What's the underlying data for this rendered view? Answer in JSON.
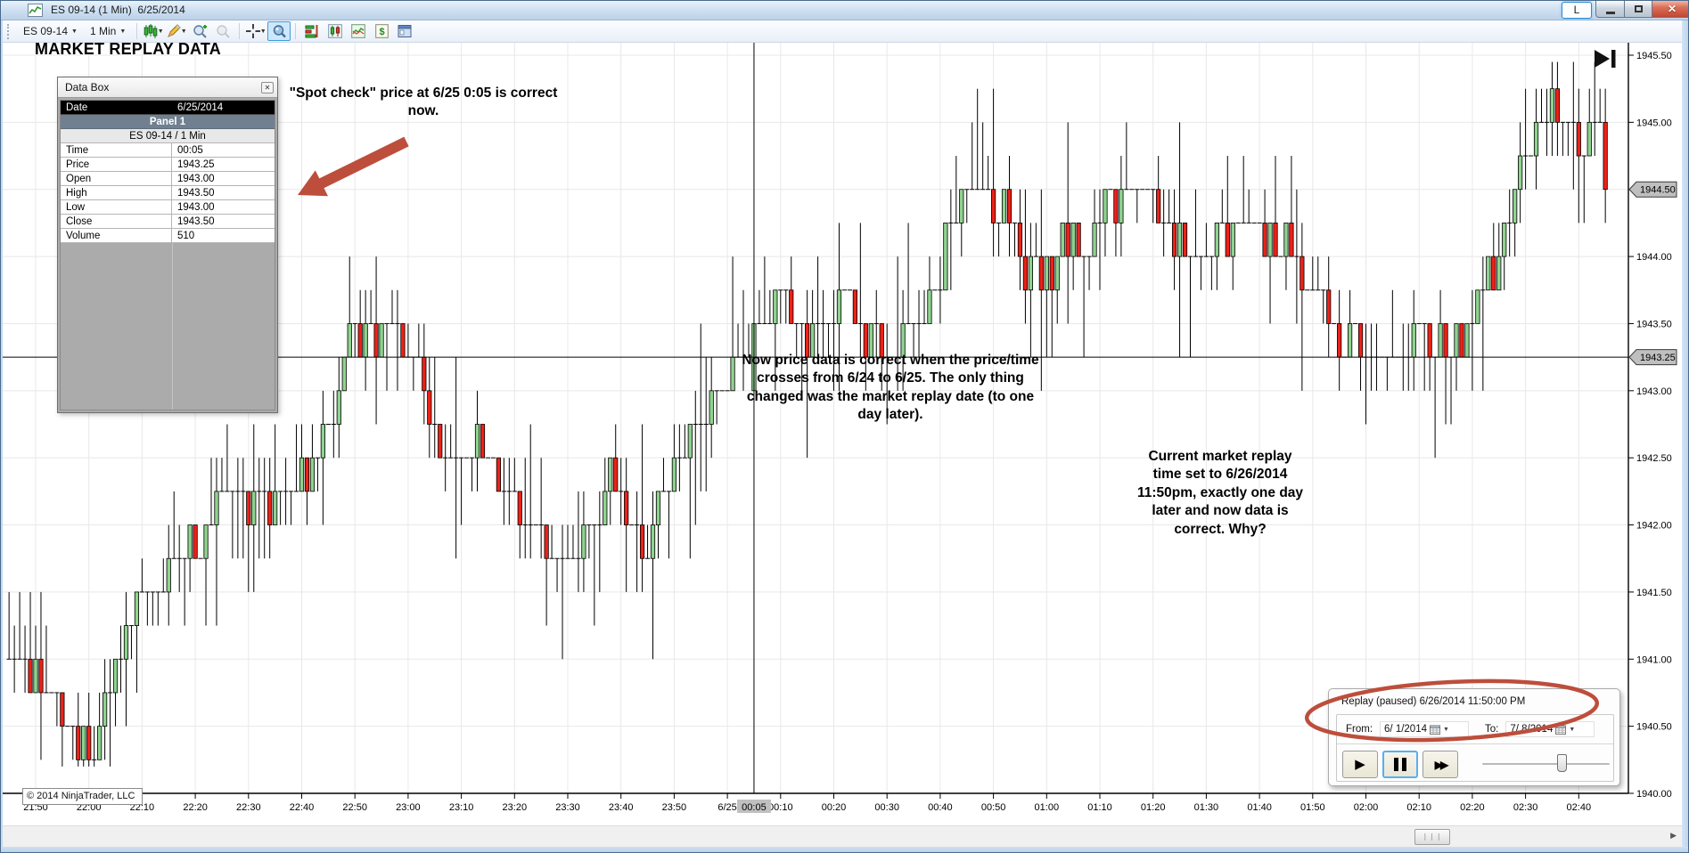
{
  "window": {
    "title": "ES 09-14 (1 Min)  6/25/2014",
    "link_label": "L",
    "copyright": "© 2014 NinjaTrader, LLC"
  },
  "toolbar": {
    "instrument": "ES 09-14",
    "interval": "1 Min"
  },
  "annotations": {
    "heading": "MARKET REPLAY DATA",
    "spot_check": "\"Spot check\" price at 6/25 0:05 is correct\nnow.",
    "mid_note": "Now price data is correct when the price/time\ncrosses from 6/24 to 6/25.  The only thing\nchanged was the market replay date (to one\nday later).",
    "right_note": "Current market replay\ntime set to 6/26/2014\n11:50pm, exactly one day\nlater and now data is\ncorrect.  Why?",
    "accent_color": "#bd4e3c"
  },
  "data_box": {
    "title": "Data Box",
    "close_glyph": "✕",
    "rows": [
      {
        "label": "Date",
        "value": "6/25/2014",
        "style": "hdr-black"
      },
      {
        "label": "Panel 1",
        "value": "",
        "style": "hdr-slate"
      },
      {
        "label": "ES 09-14 / 1 Min",
        "value": "",
        "style": "hdr-light"
      },
      {
        "label": "Time",
        "value": "00:05",
        "style": ""
      },
      {
        "label": "Price",
        "value": "1943.25",
        "style": ""
      },
      {
        "label": "Open",
        "value": "1943.00",
        "style": ""
      },
      {
        "label": "High",
        "value": "1943.50",
        "style": ""
      },
      {
        "label": "Low",
        "value": "1943.00",
        "style": ""
      },
      {
        "label": "Close",
        "value": "1943.50",
        "style": ""
      },
      {
        "label": "Volume",
        "value": "510",
        "style": ""
      }
    ]
  },
  "replay_panel": {
    "status": "Replay (paused) 6/26/2014 11:50:00 PM",
    "from_label": "From:",
    "from_value": "6/ 1/2014",
    "to_label": "To:",
    "to_value": "7/ 8/2014"
  },
  "chart_data": {
    "type": "candlestick",
    "instrument": "ES 09-14 / 1 Min",
    "up_color": "#8fd38f",
    "down_color": "#ee2117",
    "grid_color": "#e8e8e8",
    "y_ticks": [
      {
        "v": 1945.5,
        "label": "1945.50"
      },
      {
        "v": 1945.0,
        "label": "1945.00"
      },
      {
        "v": 1944.5,
        "label": "1944.50"
      },
      {
        "v": 1944.0,
        "label": "1944.00"
      },
      {
        "v": 1943.5,
        "label": "1943.50"
      },
      {
        "v": 1943.0,
        "label": "1943.00"
      },
      {
        "v": 1942.5,
        "label": "1942.50"
      },
      {
        "v": 1942.0,
        "label": "1942.00"
      },
      {
        "v": 1941.5,
        "label": "1941.50"
      },
      {
        "v": 1941.0,
        "label": "1941.00"
      },
      {
        "v": 1940.5,
        "label": "1940.50"
      },
      {
        "v": 1940.0,
        "label": "1940.00"
      }
    ],
    "x_ticks": [
      {
        "m": 0,
        "label": "21:50"
      },
      {
        "m": 10,
        "label": "22:00"
      },
      {
        "m": 20,
        "label": "22:10"
      },
      {
        "m": 30,
        "label": "22:20"
      },
      {
        "m": 40,
        "label": "22:30"
      },
      {
        "m": 50,
        "label": "22:40"
      },
      {
        "m": 60,
        "label": "22:50"
      },
      {
        "m": 70,
        "label": "23:00"
      },
      {
        "m": 80,
        "label": "23:10"
      },
      {
        "m": 90,
        "label": "23:20"
      },
      {
        "m": 100,
        "label": "23:30"
      },
      {
        "m": 110,
        "label": "23:40"
      },
      {
        "m": 120,
        "label": "23:50"
      },
      {
        "m": 130,
        "label": "6/25"
      },
      {
        "m": 140,
        "label": "00:10"
      },
      {
        "m": 150,
        "label": "00:20"
      },
      {
        "m": 160,
        "label": "00:30"
      },
      {
        "m": 170,
        "label": "00:40"
      },
      {
        "m": 180,
        "label": "00:50"
      },
      {
        "m": 190,
        "label": "01:00"
      },
      {
        "m": 200,
        "label": "01:10"
      },
      {
        "m": 210,
        "label": "01:20"
      },
      {
        "m": 220,
        "label": "01:30"
      },
      {
        "m": 230,
        "label": "01:40"
      },
      {
        "m": 240,
        "label": "01:50"
      },
      {
        "m": 250,
        "label": "02:00"
      },
      {
        "m": 260,
        "label": "02:10"
      },
      {
        "m": 270,
        "label": "02:20"
      },
      {
        "m": 280,
        "label": "02:30"
      },
      {
        "m": 290,
        "label": "02:40"
      }
    ],
    "crosshair": {
      "time_min": 135,
      "time_label": "00:05",
      "price": 1943.25,
      "price_label": "1943.25"
    },
    "last_price": 1944.5,
    "last_price_label": "1944.50",
    "highlight_bar": {
      "m": 135,
      "open": 1943.0,
      "high": 1943.5,
      "low": 1943.0,
      "close": 1943.5
    },
    "price_top": 1945.5,
    "price_bottom": 1940.0,
    "start_min": -5,
    "end_min": 295,
    "seed": 9,
    "waypoints": [
      [
        -5,
        1941.05
      ],
      [
        0,
        1940.9
      ],
      [
        4,
        1940.7
      ],
      [
        8,
        1940.45
      ],
      [
        12,
        1940.35
      ],
      [
        15,
        1940.8
      ],
      [
        20,
        1941.3
      ],
      [
        25,
        1941.6
      ],
      [
        30,
        1941.9
      ],
      [
        35,
        1942.1
      ],
      [
        40,
        1942.25
      ],
      [
        45,
        1942.2
      ],
      [
        50,
        1942.35
      ],
      [
        54,
        1942.5
      ],
      [
        58,
        1943.05
      ],
      [
        61,
        1943.35
      ],
      [
        64,
        1943.4
      ],
      [
        68,
        1943.55
      ],
      [
        70,
        1943.45
      ],
      [
        73,
        1943.1
      ],
      [
        76,
        1942.75
      ],
      [
        80,
        1942.45
      ],
      [
        84,
        1942.6
      ],
      [
        88,
        1942.35
      ],
      [
        92,
        1942.1
      ],
      [
        96,
        1941.85
      ],
      [
        100,
        1941.65
      ],
      [
        104,
        1941.85
      ],
      [
        107,
        1942.2
      ],
      [
        110,
        1942.3
      ],
      [
        113,
        1942.05
      ],
      [
        116,
        1941.95
      ],
      [
        120,
        1942.25
      ],
      [
        124,
        1942.5
      ],
      [
        127,
        1942.85
      ],
      [
        130,
        1943.1
      ],
      [
        133,
        1943.2
      ],
      [
        135,
        1943.45
      ],
      [
        138,
        1943.55
      ],
      [
        141,
        1943.75
      ],
      [
        144,
        1943.6
      ],
      [
        147,
        1943.4
      ],
      [
        150,
        1943.55
      ],
      [
        153,
        1943.7
      ],
      [
        156,
        1943.45
      ],
      [
        160,
        1943.3
      ],
      [
        163,
        1943.35
      ],
      [
        166,
        1943.5
      ],
      [
        170,
        1943.9
      ],
      [
        173,
        1944.2
      ],
      [
        176,
        1944.45
      ],
      [
        179,
        1944.55
      ],
      [
        182,
        1944.4
      ],
      [
        185,
        1944.15
      ],
      [
        188,
        1943.95
      ],
      [
        191,
        1943.85
      ],
      [
        194,
        1944.05
      ],
      [
        197,
        1944.0
      ],
      [
        200,
        1944.2
      ],
      [
        203,
        1944.35
      ],
      [
        206,
        1944.5
      ],
      [
        209,
        1944.45
      ],
      [
        212,
        1944.3
      ],
      [
        215,
        1944.1
      ],
      [
        218,
        1943.95
      ],
      [
        221,
        1944.0
      ],
      [
        224,
        1944.1
      ],
      [
        227,
        1944.25
      ],
      [
        230,
        1944.3
      ],
      [
        233,
        1944.2
      ],
      [
        236,
        1944.05
      ],
      [
        239,
        1943.85
      ],
      [
        242,
        1943.65
      ],
      [
        245,
        1943.5
      ],
      [
        248,
        1943.35
      ],
      [
        251,
        1943.3
      ],
      [
        254,
        1943.4
      ],
      [
        257,
        1943.25
      ],
      [
        260,
        1943.35
      ],
      [
        263,
        1943.2
      ],
      [
        266,
        1943.4
      ],
      [
        269,
        1943.35
      ],
      [
        272,
        1943.55
      ],
      [
        275,
        1943.9
      ],
      [
        278,
        1944.4
      ],
      [
        281,
        1944.8
      ],
      [
        284,
        1945.05
      ],
      [
        287,
        1945.1
      ],
      [
        290,
        1944.95
      ],
      [
        292,
        1944.8
      ],
      [
        294,
        1944.95
      ],
      [
        296,
        1944.5
      ]
    ]
  }
}
